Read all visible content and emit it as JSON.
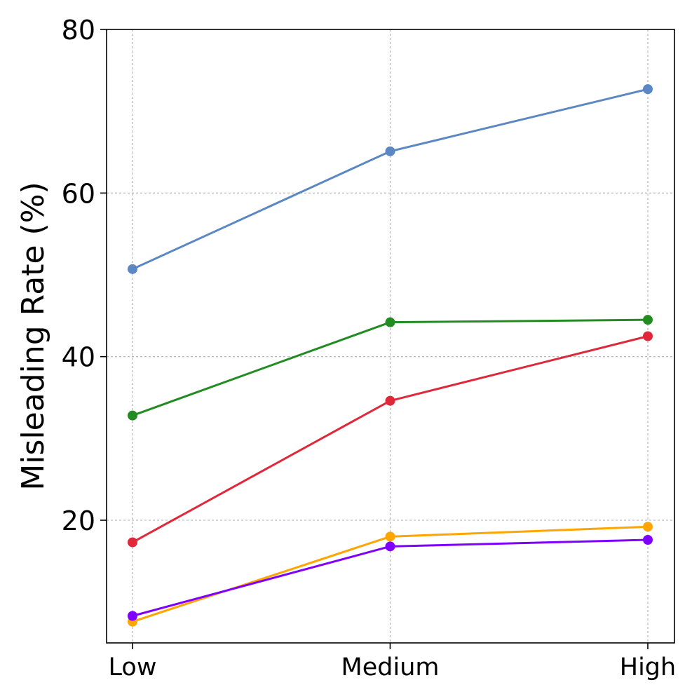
{
  "chart_data": {
    "type": "line",
    "title": "",
    "xlabel": "",
    "ylabel": "Misleading Rate (%)",
    "categories": [
      "Low",
      "Medium",
      "High"
    ],
    "ylim": [
      5,
      80
    ],
    "yticks": [
      20,
      40,
      60,
      80
    ],
    "grid": true,
    "series": [
      {
        "name": "series-blue",
        "color": "#5b87c2",
        "values": [
          50.7,
          65.1,
          72.7
        ]
      },
      {
        "name": "series-green",
        "color": "#228b22",
        "values": [
          32.8,
          44.2,
          44.5
        ]
      },
      {
        "name": "series-red",
        "color": "#e0283a",
        "values": [
          17.3,
          34.6,
          42.5
        ]
      },
      {
        "name": "series-orange",
        "color": "#ffa500",
        "values": [
          7.6,
          18.0,
          19.2
        ]
      },
      {
        "name": "series-purple",
        "color": "#8000ff",
        "values": [
          8.3,
          16.8,
          17.6
        ]
      }
    ]
  }
}
